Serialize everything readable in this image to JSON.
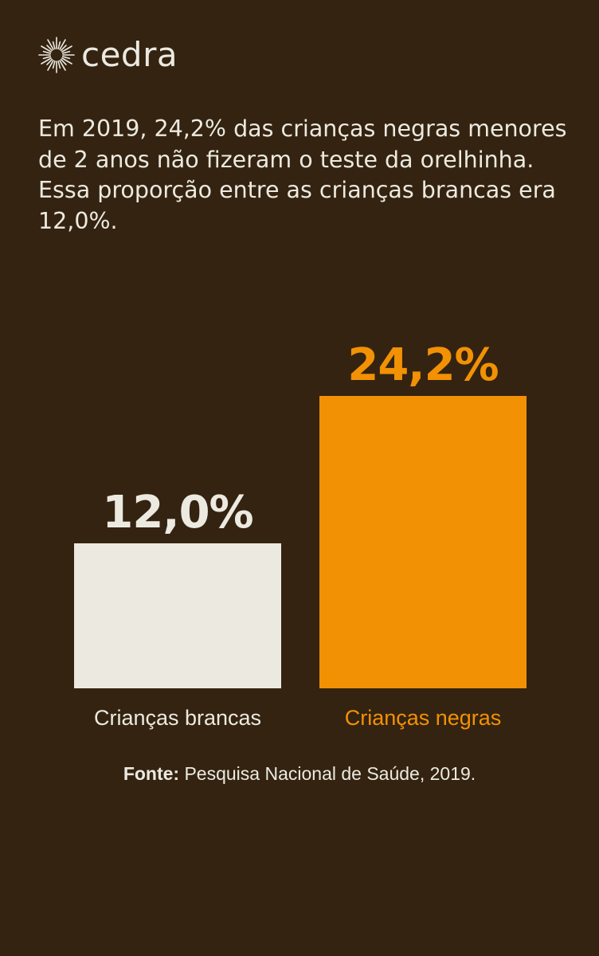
{
  "brand": {
    "name": "cedra",
    "icon": "sunburst-logo-icon"
  },
  "intro_text": "Em 2019, 24,2% das crianças negras menores de 2 anos não fizeram o teste da orelhinha. Essa proporção entre as crianças brancas era 12,0%.",
  "source": {
    "label": "Fonte:",
    "text": "Pesquisa Nacional de Saúde, 2019."
  },
  "colors": {
    "background": "#342311",
    "text": "#ECEAE0",
    "accent": "#F29104"
  },
  "chart_data": {
    "type": "bar",
    "categories": [
      "Crianças brancas",
      "Crianças negras"
    ],
    "values": [
      12.0,
      24.2
    ],
    "value_labels": [
      "12,0%",
      "24,2%"
    ],
    "bar_colors": [
      "#ECEAE0",
      "#F29104"
    ],
    "label_colors": [
      "#ECEAE0",
      "#F29104"
    ],
    "unit": "%",
    "ylim": [
      0,
      24.2
    ],
    "grid": false,
    "axes_visible": false
  }
}
